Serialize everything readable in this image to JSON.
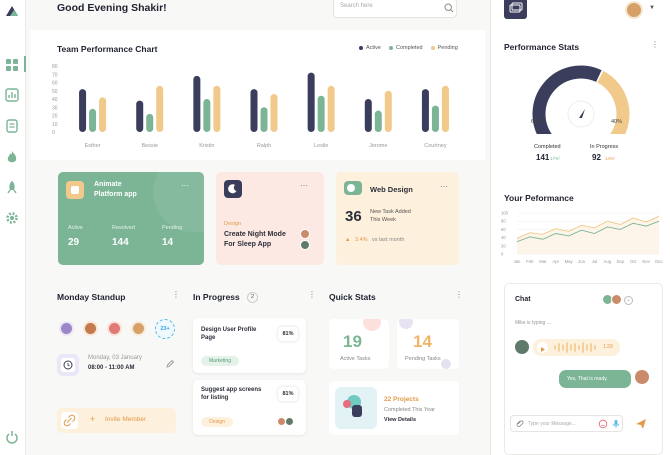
{
  "header": {
    "greeting": "Good Evening Shakir!",
    "search_placeholder": "Search here"
  },
  "team_chart": {
    "title": "Team Performance Chart",
    "legend": [
      {
        "label": "Active",
        "color": "#3a3d5c"
      },
      {
        "label": "Completed",
        "color": "#7bb596"
      },
      {
        "label": "Pending",
        "color": "#f1c98a"
      }
    ]
  },
  "chart_data": [
    {
      "type": "bar",
      "title": "Team Performance Chart",
      "categories": [
        "Esther",
        "Bessie",
        "Kristin",
        "Ralph",
        "Leslie",
        "Jerome",
        "Courtney"
      ],
      "yticks": [
        "80",
        "70",
        "60",
        "50",
        "40",
        "30",
        "20",
        "10",
        "0"
      ],
      "ylim": [
        0,
        80
      ],
      "series": [
        {
          "name": "Active",
          "color": "#3a3d5c",
          "values": [
            52,
            38,
            68,
            52,
            72,
            40,
            52
          ]
        },
        {
          "name": "Completed",
          "color": "#7bb596",
          "values": [
            28,
            22,
            40,
            30,
            44,
            26,
            32
          ]
        },
        {
          "name": "Pending",
          "color": "#f1c98a",
          "values": [
            42,
            56,
            56,
            46,
            56,
            50,
            56
          ]
        }
      ]
    },
    {
      "type": "pie",
      "title": "Performance Stats",
      "labels": [
        "Completed",
        "In Progress"
      ],
      "values": [
        60,
        40
      ],
      "value_labels": [
        "60%",
        "40%"
      ],
      "colors": [
        "#3a3d5c",
        "#f1c98a"
      ]
    },
    {
      "type": "line",
      "title": "Your Peformance",
      "categories": [
        "Jan",
        "Feb",
        "Mar",
        "Apr",
        "May",
        "Jun",
        "Jul",
        "Aug",
        "Sep",
        "Oct",
        "Nov",
        "Dec"
      ],
      "yticks": [
        "100",
        "80",
        "60",
        "40",
        "20",
        "0"
      ],
      "ylim": [
        0,
        100
      ],
      "series": [
        {
          "color": "#f1c98a",
          "values": [
            38,
            52,
            48,
            62,
            55,
            70,
            64,
            80,
            72,
            88,
            78,
            92
          ]
        },
        {
          "color": "#7bb596",
          "values": [
            30,
            42,
            36,
            50,
            44,
            58,
            50,
            66,
            60,
            75,
            68,
            80
          ]
        }
      ]
    }
  ],
  "cards": {
    "animate": {
      "title_line1": "Animate",
      "title_line2": "Platform app",
      "active_label": "Active",
      "active_value": "29",
      "resolved_label": "Resolved",
      "resolved_value": "144",
      "pending_label": "Pending",
      "pending_value": "14",
      "more": "···"
    },
    "design": {
      "tag": "Design",
      "title_line1": "Create Night Mode",
      "title_line2": "For Sleep App",
      "more": "···"
    },
    "web": {
      "title": "Web Design",
      "count": "36",
      "desc_line1": "New Task Added",
      "desc_line2": "This Week",
      "change": "3.4%",
      "change_text": "vs last month",
      "more": "···"
    }
  },
  "standup": {
    "title": "Monday Standup",
    "more_avatars": "23+",
    "date": "Monday, 03 January",
    "time": "08:00 - 11:00 AM",
    "invite": "Invite Member"
  },
  "in_progress": {
    "title": "In Progress",
    "count": "2",
    "tasks": [
      {
        "title_line1": "Design User Profile",
        "title_line2": "Page",
        "percent": "81%",
        "tag": "Marketing"
      },
      {
        "title_line1": "Suggest app screens",
        "title_line2": "for listing",
        "percent": "81%",
        "tag": "Design"
      }
    ]
  },
  "quick_stats": {
    "title": "Quick Stats",
    "active_value": "19",
    "active_label": "Active Tasks",
    "pending_value": "14",
    "pending_label": "Pending Tasks",
    "projects_value": "22 Projects",
    "projects_sub": "Completed This Year",
    "view_details": "View Details"
  },
  "perf_stats": {
    "title": "Performance Stats",
    "left_pct": "60%",
    "right_pct": "40%",
    "completed_label": "Completed",
    "completed_value": "141",
    "completed_change": "17%",
    "progress_label": "In Progress",
    "progress_value": "92",
    "progress_change": "14%"
  },
  "your_perf": {
    "title": "Your Peformance"
  },
  "chat": {
    "title": "Chat",
    "typing": "Mike is typing ...",
    "audio_time": "1:29",
    "reply": "Yes, That is ready.",
    "input_placeholder": "Type your Message..."
  },
  "colors": {
    "green": "#7bb596",
    "navy": "#3a3d5c",
    "peach": "#f1c98a",
    "pink": "#fde9e3",
    "cream": "#fdf0dc"
  }
}
